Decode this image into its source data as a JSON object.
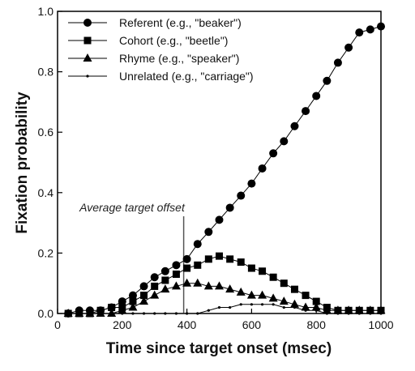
{
  "chart_data": {
    "type": "line",
    "xlabel": "Time since target onset (msec)",
    "ylabel": "Fixation probability",
    "xlim": [
      0,
      1000
    ],
    "ylim": [
      0,
      1.0
    ],
    "x_ticks": [
      "0",
      "200",
      "400",
      "600",
      "800",
      "1000"
    ],
    "y_ticks": [
      "0.0",
      "0.2",
      "0.4",
      "0.6",
      "0.8",
      "1.0"
    ],
    "legend_position": "top-left",
    "grid": false,
    "annotation": {
      "text": "Average target offset",
      "x": 390
    },
    "x": [
      33,
      67,
      100,
      133,
      167,
      200,
      233,
      267,
      300,
      333,
      367,
      400,
      433,
      467,
      500,
      533,
      567,
      600,
      633,
      667,
      700,
      733,
      767,
      800,
      833,
      867,
      900,
      933,
      967,
      1000
    ],
    "series": [
      {
        "name": "Referent (e.g., \"beaker\")",
        "marker": "circle",
        "values": [
          0.0,
          0.01,
          0.01,
          0.01,
          0.02,
          0.04,
          0.06,
          0.09,
          0.12,
          0.14,
          0.16,
          0.18,
          0.23,
          0.27,
          0.31,
          0.35,
          0.39,
          0.43,
          0.48,
          0.53,
          0.57,
          0.62,
          0.67,
          0.72,
          0.77,
          0.83,
          0.88,
          0.93,
          0.94,
          0.95
        ]
      },
      {
        "name": "Cohort (e.g., \"beetle\")",
        "marker": "square",
        "values": [
          0.0,
          0.0,
          0.0,
          0.01,
          0.02,
          0.02,
          0.04,
          0.06,
          0.09,
          0.11,
          0.13,
          0.15,
          0.16,
          0.18,
          0.19,
          0.18,
          0.17,
          0.15,
          0.14,
          0.12,
          0.1,
          0.08,
          0.06,
          0.04,
          0.02,
          0.01,
          0.01,
          0.01,
          0.01,
          0.01
        ]
      },
      {
        "name": "Rhyme (e.g., \"speaker\")",
        "marker": "triangle",
        "values": [
          0.0,
          0.0,
          0.0,
          0.0,
          0.0,
          0.01,
          0.02,
          0.04,
          0.06,
          0.08,
          0.09,
          0.1,
          0.1,
          0.09,
          0.09,
          0.08,
          0.07,
          0.06,
          0.06,
          0.05,
          0.04,
          0.03,
          0.02,
          0.02,
          0.01,
          0.01,
          0.01,
          0.01,
          0.01,
          0.01
        ]
      },
      {
        "name": "Unrelated (e.g., \"carriage\")",
        "marker": "dot",
        "values": [
          0.0,
          0.0,
          0.0,
          0.0,
          0.0,
          0.0,
          0.0,
          0.0,
          0.0,
          0.0,
          0.0,
          0.0,
          0.0,
          0.01,
          0.02,
          0.02,
          0.03,
          0.03,
          0.03,
          0.03,
          0.02,
          0.02,
          0.01,
          0.01,
          0.0,
          0.0,
          0.0,
          0.0,
          0.0,
          0.0
        ]
      }
    ]
  }
}
